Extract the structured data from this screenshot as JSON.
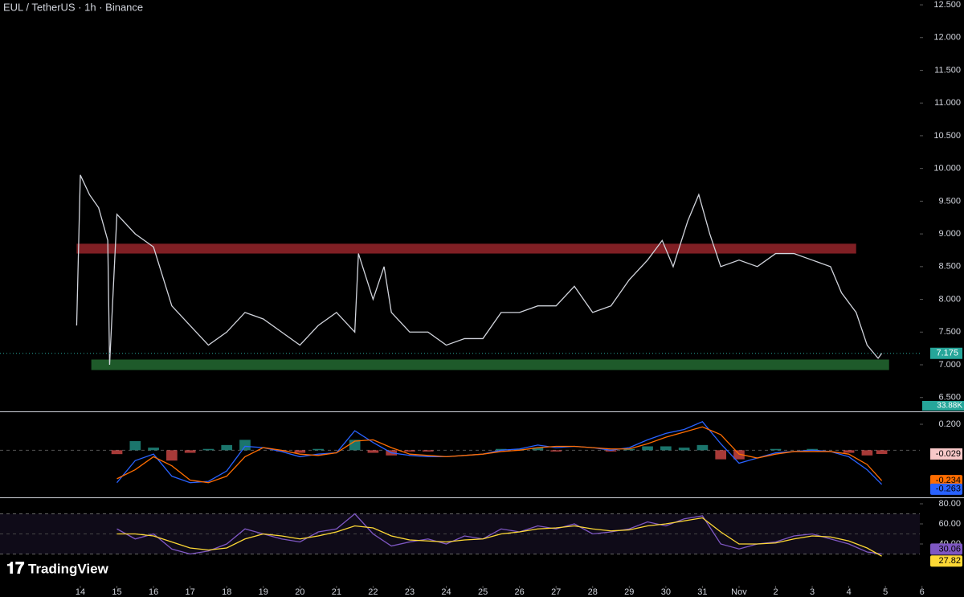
{
  "header": {
    "title": "EUL / TetherUS · 1h · Binance",
    "branding": "TradingView"
  },
  "chart_data": [
    {
      "type": "line",
      "x": [
        -0.1,
        0,
        0.25,
        0.5,
        0.75,
        0.8,
        1,
        1.5,
        2,
        2.5,
        3,
        3.5,
        4,
        4.5,
        5,
        5.5,
        6,
        6.5,
        7,
        7.5,
        7.6,
        8,
        8.3,
        8.5,
        9,
        9.5,
        10,
        10.5,
        11,
        11.5,
        12,
        12.5,
        13,
        13.5,
        14,
        14.5,
        15,
        15.5,
        15.9,
        16.2,
        16.6,
        16.9,
        17.2,
        17.5,
        18,
        18.5,
        19,
        19.5,
        20,
        20.5,
        20.8,
        21.2,
        21.5,
        21.8,
        21.9
      ],
      "series": [
        {
          "color": "#d1d4dc",
          "values": [
            7.6,
            9.9,
            9.6,
            9.4,
            8.9,
            7.0,
            9.3,
            9.0,
            8.8,
            7.9,
            7.6,
            7.3,
            7.5,
            7.8,
            7.7,
            7.5,
            7.3,
            7.6,
            7.8,
            7.5,
            8.7,
            8.0,
            8.5,
            7.8,
            7.5,
            7.5,
            7.3,
            7.4,
            7.4,
            7.8,
            7.8,
            7.9,
            7.9,
            8.2,
            7.8,
            7.9,
            8.3,
            8.6,
            8.9,
            8.5,
            9.2,
            9.6,
            9.0,
            8.5,
            8.6,
            8.5,
            8.7,
            8.7,
            8.6,
            8.5,
            8.1,
            7.8,
            7.3,
            7.1,
            7.175
          ]
        }
      ],
      "zones": [
        {
          "x": [
            -0.1,
            21.2
          ],
          "y": [
            8.7,
            8.85
          ],
          "color": "#801f24"
        },
        {
          "x": [
            0.3,
            22.1
          ],
          "y": [
            6.92,
            7.08
          ],
          "color": "#1e5a2a"
        }
      ],
      "volume_label": "33.88K",
      "xlim": [
        -2.195,
        22.94
      ],
      "ylim": [
        6.288,
        12.574
      ],
      "yticks": [
        {
          "value": 6.5,
          "label": "6.500"
        },
        {
          "value": 7,
          "label": "7.000"
        },
        {
          "value": 7.5,
          "label": "7.500"
        },
        {
          "value": 8,
          "label": "8.000"
        },
        {
          "value": 8.5,
          "label": "8.500"
        },
        {
          "value": 9,
          "label": "9.000"
        },
        {
          "value": 9.5,
          "label": "9.500"
        },
        {
          "value": 10,
          "label": "10.000"
        },
        {
          "value": 10.5,
          "label": "10.500"
        },
        {
          "value": 11,
          "label": "11.000"
        },
        {
          "value": 11.5,
          "label": "11.500"
        },
        {
          "value": 12,
          "label": "12.000"
        },
        {
          "value": 12.5,
          "label": "12.500"
        }
      ],
      "xticks": [
        {
          "value": 0,
          "label": "14"
        },
        {
          "value": 1,
          "label": "15"
        },
        {
          "value": 2,
          "label": "16"
        },
        {
          "value": 3,
          "label": "17"
        },
        {
          "value": 4,
          "label": "18"
        },
        {
          "value": 5,
          "label": "19"
        },
        {
          "value": 6,
          "label": "20"
        },
        {
          "value": 7,
          "label": "21"
        },
        {
          "value": 8,
          "label": "22"
        },
        {
          "value": 9,
          "label": "23"
        },
        {
          "value": 10,
          "label": "24"
        },
        {
          "value": 11,
          "label": "25"
        },
        {
          "value": 12,
          "label": "26"
        },
        {
          "value": 13,
          "label": "27"
        },
        {
          "value": 14,
          "label": "28"
        },
        {
          "value": 15,
          "label": "29"
        },
        {
          "value": 16,
          "label": "30"
        },
        {
          "value": 17,
          "label": "31"
        },
        {
          "value": 18,
          "label": "Nov"
        },
        {
          "value": 19,
          "label": "2"
        },
        {
          "value": 20,
          "label": "3"
        },
        {
          "value": 21,
          "label": "4"
        },
        {
          "value": 22,
          "label": "5"
        },
        {
          "value": 23,
          "label": "6"
        }
      ]
    },
    {
      "type": "macd",
      "x": [
        1,
        1.5,
        2,
        2.5,
        3,
        3.5,
        4,
        4.5,
        5,
        5.5,
        6,
        6.5,
        7,
        7.5,
        8,
        8.5,
        9,
        9.5,
        10,
        10.5,
        11,
        11.5,
        12,
        12.5,
        13,
        13.5,
        14,
        14.5,
        15,
        15.5,
        16,
        16.5,
        17,
        17.5,
        18,
        18.5,
        19,
        19.5,
        20,
        20.5,
        21,
        21.5,
        21.9
      ],
      "histogram": {
        "colors": [
          "#26a69a",
          "#ef5350"
        ],
        "values": [
          -0.03,
          0.07,
          0.02,
          -0.08,
          -0.02,
          0.01,
          0.04,
          0.08,
          0.0,
          -0.01,
          -0.02,
          0.01,
          0.0,
          0.08,
          -0.02,
          -0.04,
          -0.01,
          -0.01,
          0.0,
          0.0,
          0.0,
          0.01,
          0.01,
          0.02,
          -0.01,
          0.0,
          0.0,
          -0.01,
          0.01,
          0.03,
          0.03,
          0.02,
          0.04,
          -0.07,
          -0.07,
          0.0,
          0.01,
          0.0,
          0.01,
          0.0,
          -0.02,
          -0.04,
          -0.029
        ]
      },
      "series": [
        {
          "color": "#2962ff",
          "values": [
            -0.25,
            -0.08,
            -0.03,
            -0.2,
            -0.25,
            -0.24,
            -0.16,
            0.03,
            0.02,
            -0.01,
            -0.05,
            -0.03,
            -0.02,
            0.15,
            0.06,
            -0.02,
            -0.04,
            -0.05,
            -0.05,
            -0.04,
            -0.03,
            0.0,
            0.01,
            0.04,
            0.02,
            0.03,
            0.02,
            0.0,
            0.02,
            0.08,
            0.13,
            0.16,
            0.22,
            0.05,
            -0.1,
            -0.06,
            -0.02,
            -0.01,
            0.0,
            -0.01,
            -0.05,
            -0.15,
            -0.263
          ]
        },
        {
          "color": "#ff6d00",
          "values": [
            -0.22,
            -0.15,
            -0.05,
            -0.12,
            -0.23,
            -0.25,
            -0.2,
            -0.05,
            0.02,
            0.0,
            -0.03,
            -0.04,
            -0.02,
            0.07,
            0.08,
            0.02,
            -0.03,
            -0.04,
            -0.05,
            -0.04,
            -0.03,
            -0.01,
            0.0,
            0.02,
            0.03,
            0.03,
            0.02,
            0.01,
            0.01,
            0.05,
            0.1,
            0.14,
            0.18,
            0.12,
            -0.03,
            -0.06,
            -0.03,
            -0.01,
            -0.01,
            -0.01,
            -0.03,
            -0.11,
            -0.234
          ]
        }
      ],
      "xlim": [
        -2.195,
        22.94
      ],
      "ylim": [
        -0.357,
        0.293
      ],
      "yticks": [
        {
          "value": 0.2,
          "label": "0.200"
        }
      ]
    },
    {
      "type": "rsi",
      "x": [
        1,
        1.5,
        2,
        2.5,
        3,
        3.5,
        4,
        4.5,
        5,
        5.5,
        6,
        6.5,
        7,
        7.5,
        8,
        8.5,
        9,
        9.5,
        10,
        10.5,
        11,
        11.5,
        12,
        12.5,
        13,
        13.5,
        14,
        14.5,
        15,
        15.5,
        16,
        16.5,
        17,
        17.5,
        18,
        18.5,
        19,
        19.5,
        20,
        20.5,
        21,
        21.5,
        21.9
      ],
      "series": [
        {
          "color": "#7e57c2",
          "values": [
            55,
            45,
            50,
            35,
            30,
            33,
            40,
            55,
            50,
            45,
            42,
            52,
            55,
            70,
            50,
            38,
            42,
            45,
            40,
            48,
            45,
            55,
            52,
            58,
            55,
            60,
            50,
            52,
            55,
            62,
            58,
            65,
            68,
            40,
            35,
            40,
            42,
            48,
            50,
            45,
            40,
            32,
            30.06
          ]
        },
        {
          "color": "#fdd835",
          "values": [
            50,
            50,
            48,
            42,
            36,
            34,
            36,
            45,
            50,
            48,
            45,
            48,
            52,
            58,
            56,
            48,
            44,
            43,
            42,
            44,
            45,
            50,
            52,
            55,
            56,
            58,
            55,
            53,
            54,
            58,
            60,
            63,
            66,
            52,
            40,
            40,
            41,
            45,
            48,
            47,
            43,
            36,
            27.82
          ]
        }
      ],
      "band": [
        30,
        70
      ],
      "midline": 50,
      "xlim": [
        -2.195,
        22.94
      ],
      "ylim": [
        -1.6,
        85.6
      ],
      "yticks": [
        {
          "value": 40,
          "label": "40.00"
        },
        {
          "value": 60,
          "label": "60.00"
        },
        {
          "value": 80,
          "label": "80.00"
        }
      ]
    }
  ]
}
